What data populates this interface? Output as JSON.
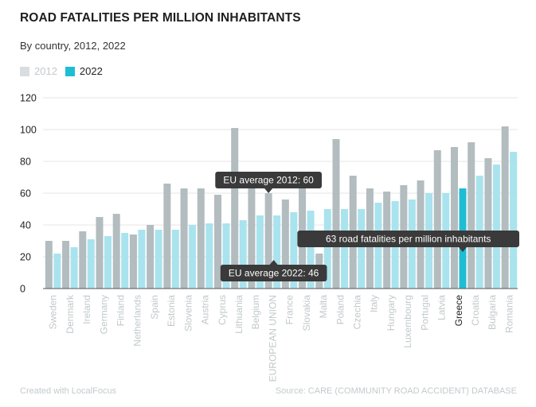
{
  "header": {
    "title": "ROAD FATALITIES PER MILLION INHABITANTS",
    "subtitle": "By country, 2012, 2022"
  },
  "legend": {
    "items": [
      {
        "label": "2012",
        "color": "#bcc3c6",
        "state": "inactive"
      },
      {
        "label": "2022",
        "color": "#1fbdd4",
        "state": "active"
      }
    ]
  },
  "colors": {
    "bar_2012": "#b3bcbf",
    "bar_2022": "#a9e3ee",
    "bar_highlight": "#1fbdd4",
    "gridline": "#e6e6e6",
    "tooltip_bg": "#3a3a3a"
  },
  "chart_data": {
    "type": "bar",
    "categories": [
      "Sweden",
      "Denmark",
      "Ireland",
      "Germany",
      "Finland",
      "Netherlands",
      "Spain",
      "Estonia",
      "Slovenia",
      "Austria",
      "Cyprus",
      "Lithuania",
      "Belgium",
      "EUROPEAN UNION",
      "France",
      "Slovakia",
      "Malta",
      "Poland",
      "Czechia",
      "Italy",
      "Hungary",
      "Luxembourg",
      "Portugal",
      "Latvia",
      "Greece",
      "Croatia",
      "Bulgaria",
      "Romania"
    ],
    "series": [
      {
        "name": "2012",
        "values": [
          30,
          30,
          36,
          45,
          47,
          34,
          40,
          66,
          63,
          63,
          59,
          101,
          69,
          60,
          56,
          65,
          22,
          94,
          71,
          63,
          61,
          65,
          68,
          87,
          89,
          92,
          82,
          102
        ]
      },
      {
        "name": "2022",
        "values": [
          22,
          26,
          31,
          33,
          35,
          37,
          37,
          37,
          40,
          41,
          41,
          43,
          46,
          46,
          48,
          49,
          50,
          50,
          50,
          54,
          55,
          56,
          60,
          60,
          63,
          71,
          78,
          86
        ]
      }
    ],
    "highlight_category": "Greece",
    "ylim": [
      0,
      120
    ],
    "yticks": [
      0,
      20,
      40,
      60,
      80,
      100,
      120
    ],
    "grid": true,
    "annotations": [
      {
        "text": "EU average 2012: 60",
        "category": "EUROPEAN UNION",
        "value": 60
      },
      {
        "text": "EU average 2022: 46",
        "category": "EUROPEAN UNION",
        "value": 46
      },
      {
        "text": "63 road fatalities per million inhabitants",
        "category": "Greece",
        "value": 63
      }
    ]
  },
  "footer": {
    "credit": "Created with LocalFocus",
    "source": "Source:  CARE (COMMUNITY ROAD ACCIDENT) DATABASE"
  }
}
